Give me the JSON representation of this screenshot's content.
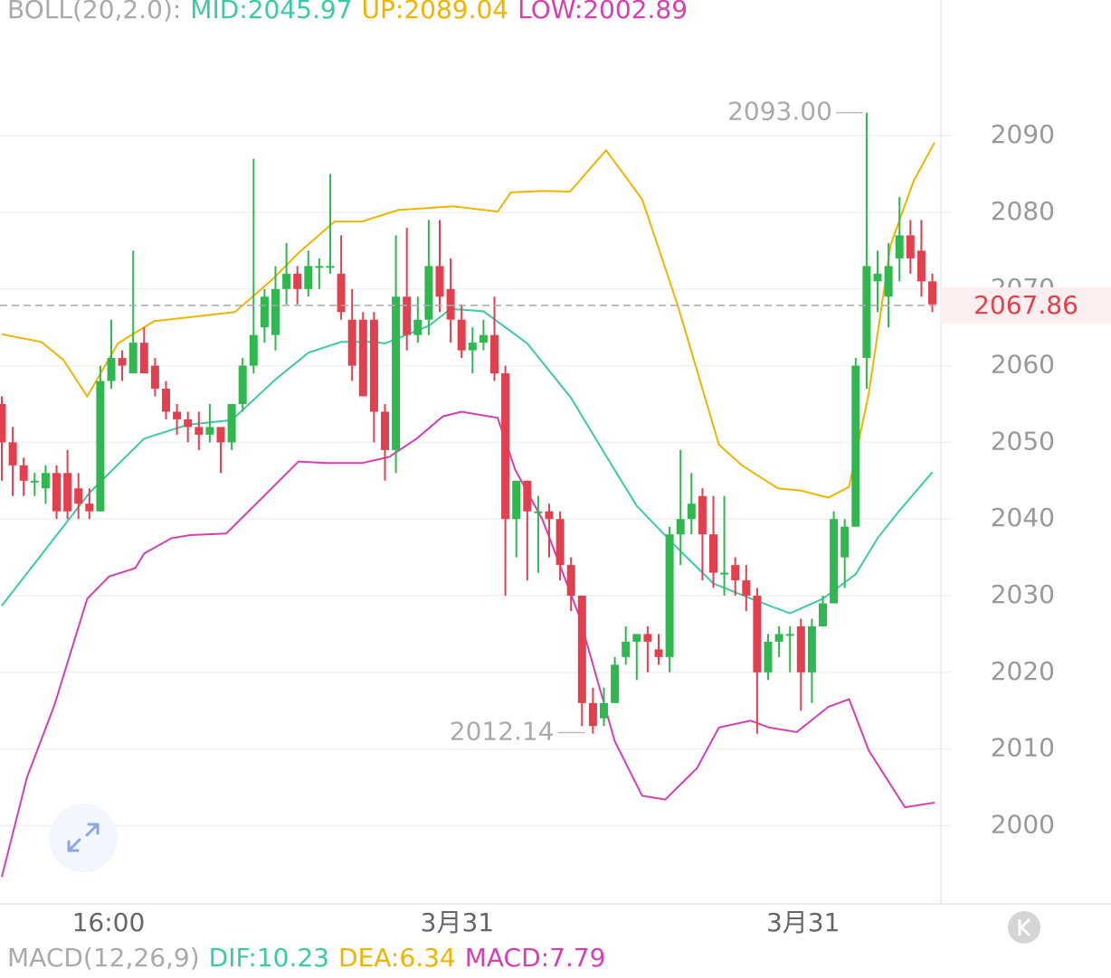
{
  "chart_data": {
    "type": "candlestick",
    "header": [
      {
        "text": "BOLL(20,2.0):",
        "color": "#aaaaaa"
      },
      {
        "text": "MID:2045.97",
        "color": "#3cc9a8"
      },
      {
        "text": "UP:2089.04",
        "color": "#f0b400"
      },
      {
        "text": "LOW:2002.89",
        "color": "#d63fb0"
      }
    ],
    "footer": [
      {
        "text": "MACD(12,26,9)",
        "color": "#aaaaaa"
      },
      {
        "text": "DIF:10.23",
        "color": "#3cc9a8"
      },
      {
        "text": "DEA:6.34",
        "color": "#f0b400"
      },
      {
        "text": "MACD:7.79",
        "color": "#d63fb0"
      }
    ],
    "up_color": "#2fb84f",
    "down_color": "#e2404f",
    "xlim": [
      -0.165,
      85.785
    ],
    "ylim": [
      1989.8,
      2107.7
    ],
    "yticks": [
      2000,
      2010,
      2020,
      2030,
      2040,
      2050,
      2060,
      2070,
      2080,
      2090
    ],
    "xticks": [
      {
        "value": 9.75,
        "label": "16:00"
      },
      {
        "value": 41.6,
        "label": "3月31"
      },
      {
        "value": 73.2,
        "label": "3月31"
      }
    ],
    "grid": true,
    "open": [
      2055,
      2050,
      2047,
      2045,
      2044,
      2046,
      2046,
      2044,
      2042,
      2041,
      2058,
      2061,
      2059,
      2063,
      2060,
      2057,
      2054,
      2053,
      2052,
      2051,
      2052,
      2050,
      2055,
      2060,
      2065,
      2064,
      2070,
      2072,
      2070,
      2073,
      2073,
      2072,
      2066,
      2066,
      2066,
      2054,
      2049,
      2069,
      2064,
      2066,
      2073,
      2070,
      2066,
      2062,
      2063,
      2064,
      2059,
      2040,
      2045,
      2041,
      2041,
      2040,
      2034,
      2030,
      2016,
      2014,
      2016,
      2022,
      2024,
      2025,
      2023,
      2022,
      2038,
      2040,
      2043,
      2038,
      2033,
      2034,
      2032,
      2030,
      2020,
      2024,
      2025,
      2026,
      2020,
      2026,
      2029,
      2035,
      2039,
      2061,
      2071,
      2069,
      2074,
      2077,
      2075,
      2071
    ],
    "high": [
      2056,
      2052,
      2048,
      2046,
      2047,
      2047,
      2049,
      2046,
      2044,
      2060,
      2066,
      2062,
      2075,
      2065,
      2061,
      2058,
      2055,
      2054,
      2054,
      2055,
      2052,
      2055,
      2061,
      2087,
      2070,
      2073,
      2076,
      2073,
      2075,
      2074,
      2085,
      2077,
      2070,
      2067,
      2067,
      2055,
      2077,
      2078,
      2069,
      2079,
      2079,
      2074,
      2068,
      2065,
      2066,
      2069,
      2060,
      2045,
      2045,
      2043,
      2042,
      2041,
      2035,
      2030,
      2018,
      2018,
      2022,
      2026,
      2025,
      2026,
      2025,
      2039,
      2049,
      2046,
      2044,
      2043,
      2043,
      2035,
      2034,
      2031,
      2025,
      2026,
      2026,
      2027,
      2027,
      2030,
      2041,
      2040,
      2061,
      2093,
      2075,
      2076,
      2082,
      2079,
      2079,
      2072
    ],
    "low": [
      2045,
      2043,
      2043,
      2043,
      2042,
      2040,
      2040,
      2040,
      2040,
      2041,
      2057,
      2058,
      2059,
      2059,
      2056,
      2053,
      2051,
      2050,
      2049,
      2050,
      2046,
      2049,
      2054,
      2059,
      2063,
      2062,
      2068,
      2068,
      2069,
      2070,
      2072,
      2066,
      2058,
      2056,
      2050,
      2045,
      2046,
      2062,
      2063,
      2064,
      2067,
      2063,
      2061,
      2059,
      2062,
      2058,
      2030,
      2035,
      2032,
      2033,
      2035,
      2032,
      2028,
      2013,
      2012,
      2013,
      2016,
      2021,
      2019,
      2020,
      2021,
      2020,
      2034,
      2038,
      2032,
      2031,
      2030,
      2030,
      2028,
      2012,
      2019,
      2022,
      2020,
      2015,
      2016,
      2026,
      2029,
      2031,
      2039,
      2057,
      2067,
      2065,
      2071,
      2072,
      2069,
      2067
    ],
    "close": [
      2050,
      2047,
      2045,
      2045,
      2046,
      2041,
      2041,
      2042,
      2041,
      2058,
      2061,
      2060,
      2063,
      2059,
      2057,
      2054,
      2053,
      2052,
      2051,
      2052,
      2050,
      2055,
      2060,
      2064,
      2069,
      2070,
      2072,
      2070,
      2073,
      2073,
      2073,
      2067,
      2060,
      2056,
      2054,
      2049,
      2069,
      2064,
      2066,
      2073,
      2069,
      2066,
      2062,
      2063,
      2064,
      2059,
      2040,
      2045,
      2041,
      2041,
      2040,
      2034,
      2030,
      2016,
      2013,
      2016,
      2021,
      2024,
      2025,
      2024,
      2022,
      2038,
      2040,
      2042,
      2038,
      2033,
      2033,
      2032,
      2030,
      2020,
      2024,
      2025,
      2025,
      2020,
      2026,
      2029,
      2040,
      2039,
      2060,
      2073,
      2072,
      2073,
      2077,
      2074,
      2071,
      2068
    ],
    "bands": [
      {
        "name": "MID",
        "color": "#3cc9a8",
        "x": [
          0,
          8,
          13,
          17,
          21,
          25,
          28,
          31,
          34,
          35,
          39,
          41,
          44,
          48,
          52,
          55,
          58,
          62,
          65,
          69,
          72,
          75,
          78,
          80,
          82,
          85
        ],
        "values": [
          2028.7,
          2043.4,
          2050.5,
          2052.3,
          2052.9,
          2058.2,
          2061.7,
          2063.1,
          2063.1,
          2062.9,
          2065.2,
          2067.4,
          2067.1,
          2062.9,
          2055.8,
          2048.7,
          2041.7,
          2035.8,
          2031.6,
          2029.3,
          2027.7,
          2029.6,
          2032.8,
          2037.5,
          2041.1,
          2046.1
        ]
      },
      {
        "name": "UP",
        "color": "#f0b400",
        "x": [
          0,
          3.6,
          5.6,
          7.8,
          10.6,
          13.9,
          21.3,
          24.6,
          27.1,
          30.4,
          32.9,
          36.2,
          41.2,
          45.3,
          46.5,
          49.4,
          51.9,
          55.2,
          58.5,
          61.8,
          65.5,
          67.6,
          70.9,
          73,
          75.5,
          77.4,
          79.2,
          81.2,
          83.3,
          85.2
        ],
        "values": [
          2064.1,
          2063.1,
          2060.8,
          2056.0,
          2062.9,
          2065.8,
          2067.0,
          2071.1,
          2074.7,
          2078.8,
          2078.8,
          2080.3,
          2080.8,
          2080.1,
          2082.6,
          2082.8,
          2082.7,
          2088.1,
          2081.7,
          2067.6,
          2049.7,
          2047.0,
          2044.0,
          2043.7,
          2042.8,
          2044.2,
          2056.4,
          2075.8,
          2084.1,
          2089.1
        ]
      },
      {
        "name": "LOW",
        "color": "#d63fb0",
        "x": [
          0,
          2.3,
          4.8,
          7.8,
          9.8,
          12.2,
          13,
          15.5,
          17.2,
          20.5,
          23.8,
          27.1,
          29.6,
          32.9,
          35.4,
          37.9,
          40.3,
          42,
          45.3,
          46.9,
          49.4,
          52.7,
          56,
          58.5,
          60.6,
          63.5,
          65.5,
          68.4,
          70.1,
          72.6,
          75.5,
          77.4,
          79.2,
          82.5,
          85.2
        ],
        "values": [
          1993.3,
          2006.3,
          2015.7,
          2029.6,
          2032.5,
          2033.6,
          2035.5,
          2037.5,
          2037.9,
          2038.1,
          2042.8,
          2047.5,
          2047.3,
          2047.3,
          2048.1,
          2050.5,
          2053.4,
          2054.0,
          2053.2,
          2046.4,
          2039.9,
          2027.5,
          2011.0,
          2003.9,
          2003.4,
          2007.5,
          2012.8,
          2013.7,
          2012.8,
          2012.2,
          2015.5,
          2016.5,
          2009.8,
          2002.4,
          2003.0
        ]
      }
    ],
    "annotations": [
      {
        "value": 2093,
        "label": "2093.00",
        "x": 79,
        "side": "left"
      },
      {
        "value": 2012.14,
        "label": "2012.14",
        "x": 53.6,
        "side": "left"
      }
    ],
    "last_price": 2067.86,
    "last_price_color": "#e2404f"
  }
}
